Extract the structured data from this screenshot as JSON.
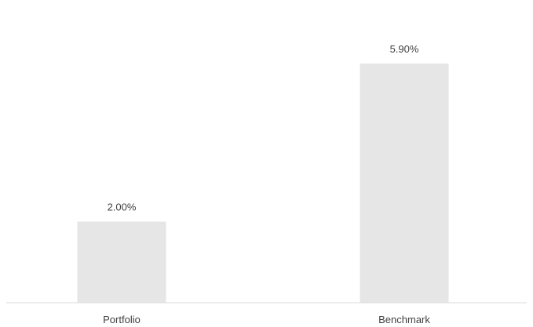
{
  "chart_data": {
    "type": "bar",
    "categories": [
      "Portfolio",
      "Benchmark"
    ],
    "values": [
      2.0,
      5.9
    ],
    "value_labels": [
      "2.00%",
      "5.90%"
    ],
    "ylim": [
      0,
      5.9
    ],
    "grid": false,
    "legend": "none",
    "bar_color": "#e6e6e6",
    "axis_color": "#d9d9d9",
    "text_color": "#404040"
  }
}
